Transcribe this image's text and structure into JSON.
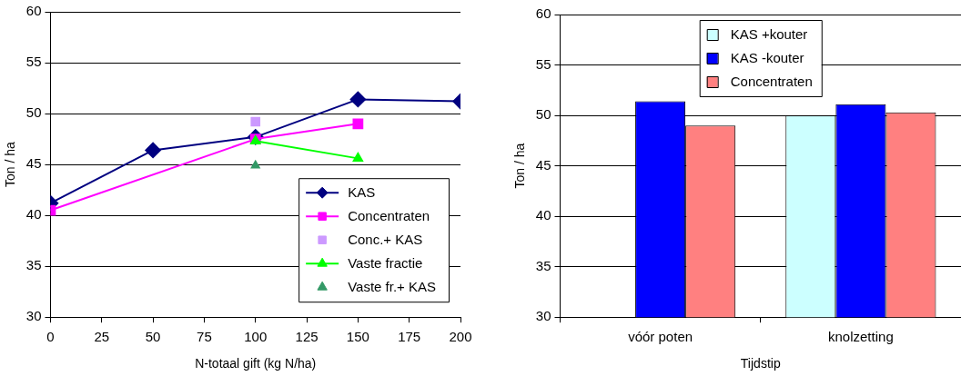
{
  "chart_data": [
    {
      "type": "line",
      "xlabel": "N-totaal gift (kg N/ha)",
      "ylabel": "Ton / ha",
      "xlim": [
        0,
        200
      ],
      "xticks": [
        0,
        25,
        50,
        75,
        100,
        125,
        150,
        175,
        200
      ],
      "ylim": [
        30,
        60
      ],
      "yticks": [
        30,
        35,
        40,
        45,
        50,
        55,
        60
      ],
      "grid": "y",
      "legend": "bottom right",
      "series": [
        {
          "name": "KAS",
          "color": "#000080",
          "type": "line",
          "marker": "diamond",
          "x": [
            0,
            50,
            100,
            150,
            200
          ],
          "values": [
            41.2,
            46.4,
            47.7,
            51.4,
            51.2
          ]
        },
        {
          "name": "Concentraten",
          "color": "#ff00ff",
          "type": "line",
          "marker": "square",
          "x": [
            0,
            100,
            150
          ],
          "values": [
            40.5,
            47.5,
            49.0
          ]
        },
        {
          "name": "Conc.+ KAS",
          "color": "#cc99ff",
          "type": "scatter",
          "marker": "square",
          "x": [
            100
          ],
          "values": [
            49.2
          ]
        },
        {
          "name": "Vaste fractie",
          "color": "#00ff00",
          "type": "line",
          "marker": "triangle",
          "x": [
            100,
            150
          ],
          "values": [
            47.3,
            45.6
          ]
        },
        {
          "name": "Vaste fr.+ KAS",
          "color": "#339966",
          "type": "scatter",
          "marker": "triangle",
          "x": [
            100
          ],
          "values": [
            44.9
          ]
        }
      ]
    },
    {
      "type": "bar",
      "xlabel": "Tijdstip",
      "ylabel": "Ton / ha",
      "categories": [
        "vóór poten",
        "knolzetting"
      ],
      "ylim": [
        30,
        60
      ],
      "yticks": [
        30,
        35,
        40,
        45,
        50,
        55,
        60
      ],
      "grid": "y",
      "legend": "top",
      "series": [
        {
          "name": "KAS +kouter",
          "color": "#ccffff",
          "values": [
            null,
            50.0
          ]
        },
        {
          "name": "KAS -kouter",
          "color": "#0000ff",
          "values": [
            51.4,
            51.1
          ]
        },
        {
          "name": "Concentraten",
          "color": "#ff8080",
          "values": [
            49.0,
            50.3
          ]
        }
      ]
    }
  ]
}
